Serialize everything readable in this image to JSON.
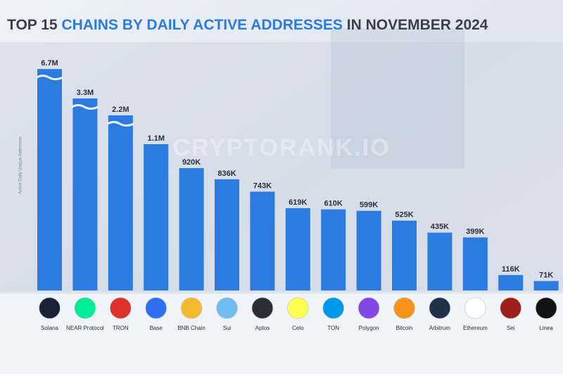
{
  "chart_data": {
    "type": "bar",
    "title_parts": [
      "TOP 15 ",
      "CHAINS BY DAILY ACTIVE ADDRESSES",
      " IN NOVEMBER 2024"
    ],
    "y_label": "Active Daily Unique Addresses",
    "watermark": "CRYPTORANK.IO",
    "categories": [
      "Solana",
      "NEAR Protocol",
      "TRON",
      "Base",
      "BNB Chain",
      "Sui",
      "Aptos",
      "Celo",
      "TON",
      "Polygon",
      "Bitcoin",
      "Arbitrum",
      "Ethereum",
      "Sei",
      "Linea"
    ],
    "values": [
      6700000,
      3300000,
      2200000,
      1100000,
      920000,
      836000,
      743000,
      619000,
      610000,
      599000,
      525000,
      435000,
      399000,
      116000,
      71000
    ],
    "value_labels": [
      "6.7M",
      "3.3M",
      "2.2M",
      "1.1M",
      "920K",
      "836K",
      "743K",
      "619K",
      "610K",
      "599K",
      "525K",
      "435K",
      "399K",
      "116K",
      "71K"
    ],
    "color": "#2b7be0",
    "axis_break": true
  }
}
